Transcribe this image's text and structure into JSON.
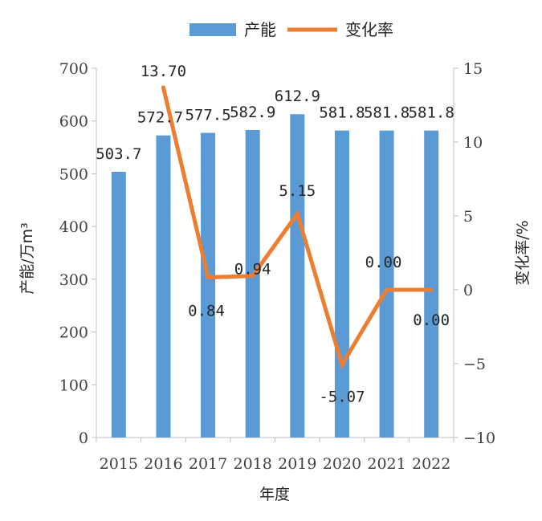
{
  "chart_data": {
    "type": "bar",
    "title": "",
    "categories": [
      "2015",
      "2016",
      "2017",
      "2018",
      "2019",
      "2020",
      "2021",
      "2022"
    ],
    "series": [
      {
        "name": "产能",
        "type": "bar",
        "axis": "left",
        "color": "#5B9BD5",
        "values": [
          503.7,
          572.7,
          577.5,
          582.9,
          612.9,
          581.8,
          581.8,
          581.8
        ],
        "labels": [
          "503.7",
          "572.7",
          "577.5",
          "582.9",
          "612.9",
          "581.8",
          "581.8",
          "581.8"
        ]
      },
      {
        "name": "变化率",
        "type": "line",
        "axis": "right",
        "color": "#ED7D31",
        "values": [
          null,
          13.7,
          0.84,
          0.94,
          5.15,
          -5.07,
          0.0,
          0.0
        ],
        "labels": [
          "",
          "13.70",
          "0.84",
          "0.94",
          "5.15",
          "-5.07",
          "0.00",
          "0.00"
        ]
      }
    ],
    "xlabel": "年度",
    "ylabel_left": "产能/万m³",
    "ylabel_right": "变化率/%",
    "ylim_left": [
      0,
      700
    ],
    "yticks_left": [
      "0",
      "100",
      "200",
      "300",
      "400",
      "500",
      "600",
      "700"
    ],
    "ylim_right": [
      -10,
      15
    ],
    "yticks_right": [
      "−10",
      "−5",
      "0",
      "5",
      "10",
      "15"
    ],
    "grid": false,
    "legend_position": "top-center"
  }
}
